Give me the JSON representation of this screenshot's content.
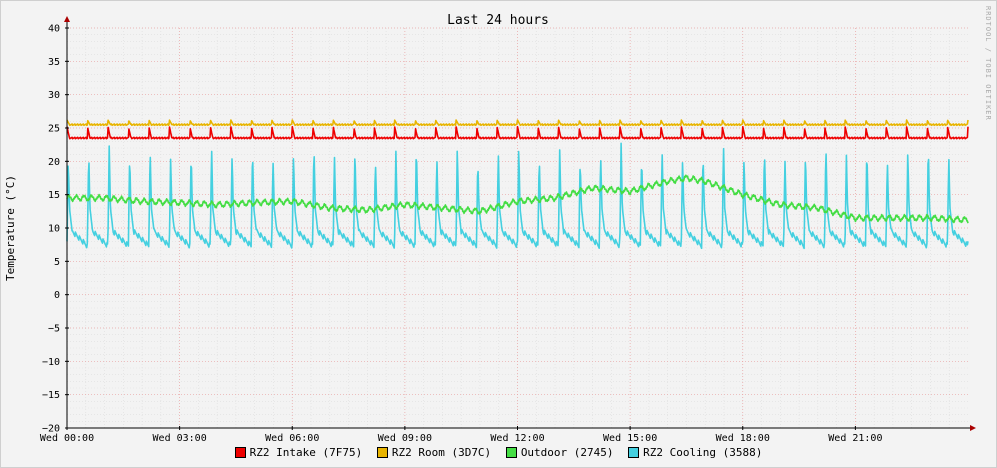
{
  "watermark": "RRDTOOL / TOBI OETIKER",
  "chart_data": {
    "type": "line",
    "title": "Last 24 hours",
    "ylabel": "Temperature (°C)",
    "xlabel": "",
    "ylim": [
      -20,
      40
    ],
    "yticks": [
      40,
      35,
      30,
      25,
      20,
      15,
      10,
      5,
      0,
      -5,
      -10,
      -15,
      -20
    ],
    "xlim": [
      0,
      24
    ],
    "xticks": [
      {
        "x": 0,
        "label": "Wed 00:00"
      },
      {
        "x": 3,
        "label": "Wed 03:00"
      },
      {
        "x": 6,
        "label": "Wed 06:00"
      },
      {
        "x": 9,
        "label": "Wed 09:00"
      },
      {
        "x": 12,
        "label": "Wed 12:00"
      },
      {
        "x": 15,
        "label": "Wed 15:00"
      },
      {
        "x": 18,
        "label": "Wed 18:00"
      },
      {
        "x": 21,
        "label": "Wed 21:00"
      }
    ],
    "grid": true,
    "legend_position": "bottom",
    "series": [
      {
        "name": "RZ2 Intake (7F75)",
        "color": "#ee0000",
        "baseline": 23.5,
        "spike": 25.2,
        "cycles": 44
      },
      {
        "name": "RZ2 Room (3D7C)",
        "color": "#e8b400",
        "baseline": 25.5,
        "spike": 26.2,
        "cycles": 44
      },
      {
        "name": "Outdoor (2745)",
        "color": "#44dd44",
        "x": [
          0,
          1,
          2,
          3,
          4,
          5,
          6,
          7,
          8,
          9,
          10,
          11,
          12,
          13,
          14,
          15,
          16,
          16.5,
          17,
          18,
          19,
          20,
          21,
          22,
          23,
          24
        ],
        "y": [
          14.5,
          14.5,
          14.0,
          13.8,
          13.5,
          13.8,
          14.0,
          13.0,
          12.7,
          13.5,
          13.0,
          12.5,
          14.0,
          14.5,
          16.0,
          15.5,
          17.0,
          17.5,
          17.0,
          15.0,
          13.5,
          13.0,
          11.5,
          11.5,
          11.5,
          11.2
        ]
      },
      {
        "name": "RZ2 Cooling (3588)",
        "color": "#44d0e0",
        "baseline": 8.0,
        "spike": 21.5,
        "cycles": 44
      }
    ]
  }
}
